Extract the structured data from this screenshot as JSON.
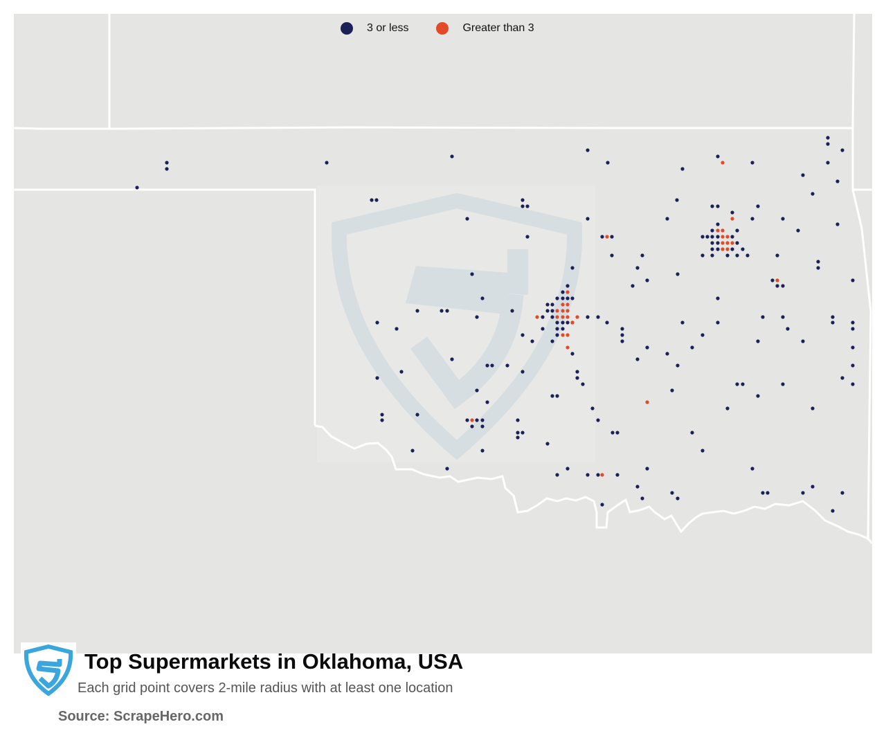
{
  "legend": {
    "items": [
      {
        "label": "3 or less",
        "color": "#1b2157"
      },
      {
        "label": "Greater than 3",
        "color": "#e34a27"
      }
    ]
  },
  "footer": {
    "logo_icon": "scrapehero-shield-logo",
    "title": "Top Supermarkets in Oklahoma, USA",
    "subtitle": "Each grid point covers 2-mile radius with at least one location",
    "source": "Source: ScrapeHero.com"
  },
  "colors": {
    "map_background": "#e5e5e3",
    "state_borders": "#ffffff",
    "low_density": "#1b2157",
    "high_density": "#e34a27",
    "logo_blue": "#3aa6dd",
    "watermark": "#d0dce5"
  }
}
